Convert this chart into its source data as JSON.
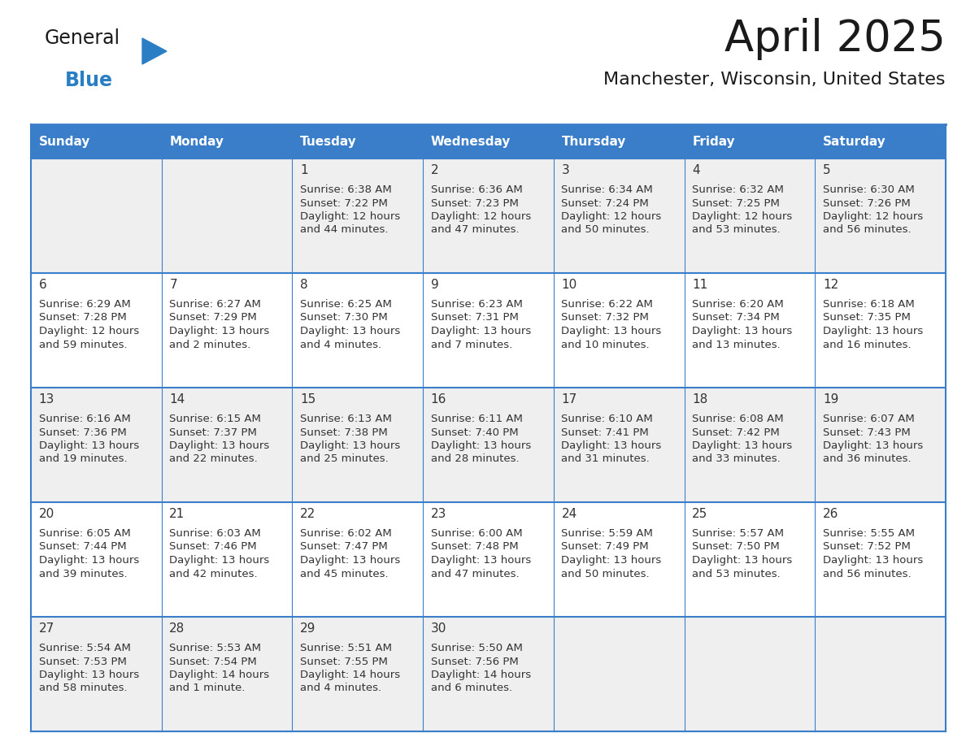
{
  "title": "April 2025",
  "subtitle": "Manchester, Wisconsin, United States",
  "header_bg": "#3A7DC9",
  "header_text_color": "#FFFFFF",
  "cell_bg_light": "#EFEFEF",
  "cell_bg_white": "#FFFFFF",
  "border_color": "#3A7DC9",
  "day_names": [
    "Sunday",
    "Monday",
    "Tuesday",
    "Wednesday",
    "Thursday",
    "Friday",
    "Saturday"
  ],
  "title_color": "#1a1a1a",
  "subtitle_color": "#1a1a1a",
  "text_color": "#333333",
  "days": [
    {
      "date": 0,
      "sunrise": "",
      "sunset": "",
      "daylight": ""
    },
    {
      "date": 0,
      "sunrise": "",
      "sunset": "",
      "daylight": ""
    },
    {
      "date": 1,
      "sunrise": "6:38 AM",
      "sunset": "7:22 PM",
      "daylight": "12 hours\nand 44 minutes."
    },
    {
      "date": 2,
      "sunrise": "6:36 AM",
      "sunset": "7:23 PM",
      "daylight": "12 hours\nand 47 minutes."
    },
    {
      "date": 3,
      "sunrise": "6:34 AM",
      "sunset": "7:24 PM",
      "daylight": "12 hours\nand 50 minutes."
    },
    {
      "date": 4,
      "sunrise": "6:32 AM",
      "sunset": "7:25 PM",
      "daylight": "12 hours\nand 53 minutes."
    },
    {
      "date": 5,
      "sunrise": "6:30 AM",
      "sunset": "7:26 PM",
      "daylight": "12 hours\nand 56 minutes."
    },
    {
      "date": 6,
      "sunrise": "6:29 AM",
      "sunset": "7:28 PM",
      "daylight": "12 hours\nand 59 minutes."
    },
    {
      "date": 7,
      "sunrise": "6:27 AM",
      "sunset": "7:29 PM",
      "daylight": "13 hours\nand 2 minutes."
    },
    {
      "date": 8,
      "sunrise": "6:25 AM",
      "sunset": "7:30 PM",
      "daylight": "13 hours\nand 4 minutes."
    },
    {
      "date": 9,
      "sunrise": "6:23 AM",
      "sunset": "7:31 PM",
      "daylight": "13 hours\nand 7 minutes."
    },
    {
      "date": 10,
      "sunrise": "6:22 AM",
      "sunset": "7:32 PM",
      "daylight": "13 hours\nand 10 minutes."
    },
    {
      "date": 11,
      "sunrise": "6:20 AM",
      "sunset": "7:34 PM",
      "daylight": "13 hours\nand 13 minutes."
    },
    {
      "date": 12,
      "sunrise": "6:18 AM",
      "sunset": "7:35 PM",
      "daylight": "13 hours\nand 16 minutes."
    },
    {
      "date": 13,
      "sunrise": "6:16 AM",
      "sunset": "7:36 PM",
      "daylight": "13 hours\nand 19 minutes."
    },
    {
      "date": 14,
      "sunrise": "6:15 AM",
      "sunset": "7:37 PM",
      "daylight": "13 hours\nand 22 minutes."
    },
    {
      "date": 15,
      "sunrise": "6:13 AM",
      "sunset": "7:38 PM",
      "daylight": "13 hours\nand 25 minutes."
    },
    {
      "date": 16,
      "sunrise": "6:11 AM",
      "sunset": "7:40 PM",
      "daylight": "13 hours\nand 28 minutes."
    },
    {
      "date": 17,
      "sunrise": "6:10 AM",
      "sunset": "7:41 PM",
      "daylight": "13 hours\nand 31 minutes."
    },
    {
      "date": 18,
      "sunrise": "6:08 AM",
      "sunset": "7:42 PM",
      "daylight": "13 hours\nand 33 minutes."
    },
    {
      "date": 19,
      "sunrise": "6:07 AM",
      "sunset": "7:43 PM",
      "daylight": "13 hours\nand 36 minutes."
    },
    {
      "date": 20,
      "sunrise": "6:05 AM",
      "sunset": "7:44 PM",
      "daylight": "13 hours\nand 39 minutes."
    },
    {
      "date": 21,
      "sunrise": "6:03 AM",
      "sunset": "7:46 PM",
      "daylight": "13 hours\nand 42 minutes."
    },
    {
      "date": 22,
      "sunrise": "6:02 AM",
      "sunset": "7:47 PM",
      "daylight": "13 hours\nand 45 minutes."
    },
    {
      "date": 23,
      "sunrise": "6:00 AM",
      "sunset": "7:48 PM",
      "daylight": "13 hours\nand 47 minutes."
    },
    {
      "date": 24,
      "sunrise": "5:59 AM",
      "sunset": "7:49 PM",
      "daylight": "13 hours\nand 50 minutes."
    },
    {
      "date": 25,
      "sunrise": "5:57 AM",
      "sunset": "7:50 PM",
      "daylight": "13 hours\nand 53 minutes."
    },
    {
      "date": 26,
      "sunrise": "5:55 AM",
      "sunset": "7:52 PM",
      "daylight": "13 hours\nand 56 minutes."
    },
    {
      "date": 27,
      "sunrise": "5:54 AM",
      "sunset": "7:53 PM",
      "daylight": "13 hours\nand 58 minutes."
    },
    {
      "date": 28,
      "sunrise": "5:53 AM",
      "sunset": "7:54 PM",
      "daylight": "14 hours\nand 1 minute."
    },
    {
      "date": 29,
      "sunrise": "5:51 AM",
      "sunset": "7:55 PM",
      "daylight": "14 hours\nand 4 minutes."
    },
    {
      "date": 30,
      "sunrise": "5:50 AM",
      "sunset": "7:56 PM",
      "daylight": "14 hours\nand 6 minutes."
    },
    {
      "date": 0,
      "sunrise": "",
      "sunset": "",
      "daylight": ""
    },
    {
      "date": 0,
      "sunrise": "",
      "sunset": "",
      "daylight": ""
    },
    {
      "date": 0,
      "sunrise": "",
      "sunset": "",
      "daylight": ""
    }
  ],
  "logo_general_color": "#1a1a1a",
  "logo_blue_color": "#2a7fc4",
  "logo_triangle_color": "#2a7fc4",
  "fig_width": 11.88,
  "fig_height": 9.18,
  "dpi": 100
}
